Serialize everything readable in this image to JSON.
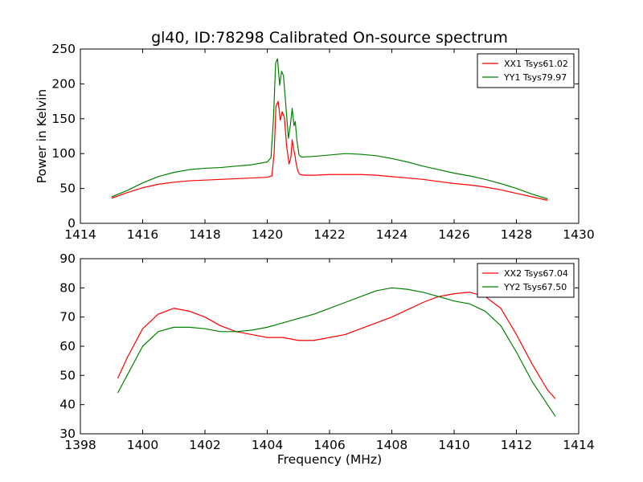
{
  "chart_data": [
    {
      "type": "line",
      "title": "gl40, ID:78298 Calibrated On-source spectrum",
      "xlabel": "",
      "ylabel": "Power in Kelvin",
      "xlim": [
        1414,
        1430
      ],
      "ylim": [
        0,
        250
      ],
      "xticks": [
        1414,
        1416,
        1418,
        1420,
        1422,
        1424,
        1426,
        1428,
        1430
      ],
      "yticks": [
        0,
        50,
        100,
        150,
        200,
        250
      ],
      "legend": "top-right",
      "grid": false,
      "series": [
        {
          "name": "XX1 Tsys61.02",
          "color": "#ff0000",
          "x": [
            1415.0,
            1415.5,
            1416.0,
            1416.5,
            1417.0,
            1417.5,
            1418.0,
            1418.5,
            1419.0,
            1419.5,
            1420.0,
            1420.15,
            1420.22,
            1420.28,
            1420.35,
            1420.42,
            1420.48,
            1420.55,
            1420.62,
            1420.7,
            1420.76,
            1420.8,
            1420.84,
            1420.88,
            1420.92,
            1420.98,
            1421.05,
            1421.2,
            1421.5,
            1422.0,
            1422.5,
            1423.0,
            1423.5,
            1424.0,
            1424.5,
            1425.0,
            1425.5,
            1426.0,
            1426.5,
            1427.0,
            1427.5,
            1428.0,
            1428.5,
            1429.0
          ],
          "y": [
            36,
            44,
            51,
            56,
            59,
            61,
            62,
            63,
            64,
            65,
            66,
            68,
            100,
            168,
            175,
            148,
            160,
            152,
            112,
            85,
            95,
            120,
            108,
            100,
            88,
            75,
            70,
            69,
            69,
            70,
            70,
            70,
            69,
            67,
            65,
            63,
            60,
            57,
            55,
            52,
            48,
            43,
            38,
            33
          ]
        },
        {
          "name": "YY1 Tsys79.97",
          "color": "#008000",
          "x": [
            1415.0,
            1415.5,
            1416.0,
            1416.5,
            1417.0,
            1417.5,
            1418.0,
            1418.5,
            1419.0,
            1419.5,
            1420.0,
            1420.12,
            1420.2,
            1420.27,
            1420.33,
            1420.4,
            1420.46,
            1420.52,
            1420.6,
            1420.68,
            1420.74,
            1420.8,
            1420.86,
            1420.9,
            1420.95,
            1421.02,
            1421.1,
            1421.5,
            1422.0,
            1422.5,
            1423.0,
            1423.5,
            1424.0,
            1424.5,
            1425.0,
            1425.5,
            1426.0,
            1426.5,
            1427.0,
            1427.5,
            1428.0,
            1428.5,
            1429.0
          ],
          "y": [
            38,
            47,
            58,
            67,
            73,
            77,
            79,
            80,
            82,
            84,
            88,
            94,
            150,
            230,
            236,
            198,
            218,
            212,
            168,
            122,
            140,
            165,
            140,
            146,
            120,
            98,
            95,
            96,
            98,
            100,
            99,
            97,
            93,
            88,
            82,
            77,
            72,
            68,
            63,
            57,
            50,
            42,
            35
          ]
        }
      ]
    },
    {
      "type": "line",
      "title": "",
      "xlabel": "Frequency (MHz)",
      "ylabel": "",
      "xlim": [
        1398,
        1414
      ],
      "ylim": [
        30,
        90
      ],
      "xticks": [
        1398,
        1400,
        1402,
        1404,
        1406,
        1408,
        1410,
        1412,
        1414
      ],
      "yticks": [
        30,
        40,
        50,
        60,
        70,
        80,
        90
      ],
      "legend": "top-right",
      "grid": false,
      "series": [
        {
          "name": "XX2 Tsys67.04",
          "color": "#ff0000",
          "x": [
            1399.2,
            1399.5,
            1400.0,
            1400.5,
            1401.0,
            1401.5,
            1402.0,
            1402.5,
            1403.0,
            1403.5,
            1404.0,
            1404.5,
            1405.0,
            1405.5,
            1406.0,
            1406.5,
            1407.0,
            1407.5,
            1408.0,
            1408.5,
            1409.0,
            1409.5,
            1410.0,
            1410.5,
            1411.0,
            1411.5,
            1412.0,
            1412.5,
            1413.0,
            1413.25
          ],
          "y": [
            49,
            56,
            66,
            71,
            73,
            72,
            70,
            67,
            65,
            64,
            63,
            63,
            62,
            62,
            63,
            64,
            66,
            68,
            70,
            72.5,
            75,
            77,
            78,
            78.5,
            77,
            73,
            64,
            54,
            45,
            42
          ]
        },
        {
          "name": "YY2 Tsys67.50",
          "color": "#008000",
          "x": [
            1399.2,
            1399.5,
            1400.0,
            1400.5,
            1401.0,
            1401.5,
            1402.0,
            1402.5,
            1403.0,
            1403.5,
            1404.0,
            1404.5,
            1405.0,
            1405.5,
            1406.0,
            1406.5,
            1407.0,
            1407.5,
            1408.0,
            1408.5,
            1409.0,
            1409.5,
            1410.0,
            1410.5,
            1411.0,
            1411.5,
            1412.0,
            1412.5,
            1413.0,
            1413.25
          ],
          "y": [
            44,
            50,
            60,
            65,
            66.5,
            66.5,
            66,
            65,
            65,
            65.5,
            66.5,
            68,
            69.5,
            71,
            73,
            75,
            77,
            79,
            80,
            79.5,
            78.5,
            77,
            75.5,
            74.5,
            72,
            67,
            58,
            48,
            40,
            36
          ]
        }
      ]
    }
  ]
}
